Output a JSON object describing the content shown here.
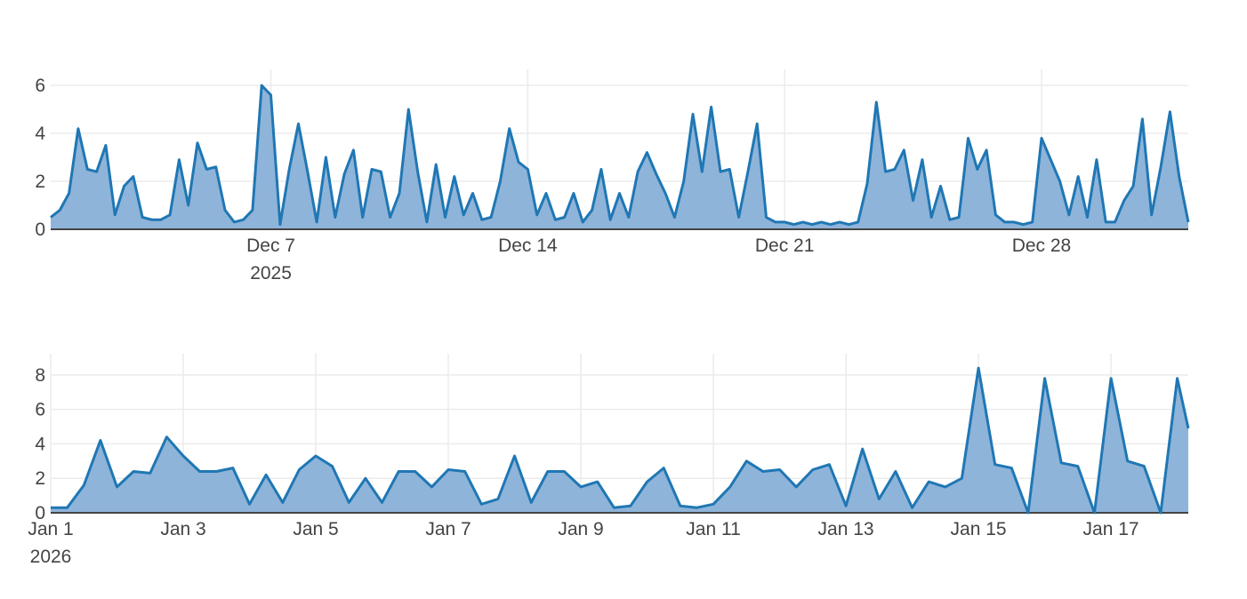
{
  "chart_data": [
    {
      "type": "area",
      "color": "#1f77b4",
      "fill": "#8fb4d9",
      "xlim": [
        "2025-12-01T00:00",
        "2026-01-01T00:00"
      ],
      "ylim": [
        0,
        6.67
      ],
      "yticks": [
        0,
        2,
        4,
        6
      ],
      "grid": true,
      "xticks": [
        {
          "value": "2025-12-07T00:00",
          "label": "Dec 7\n2025"
        },
        {
          "value": "2025-12-14T00:00",
          "label": "Dec 14"
        },
        {
          "value": "2025-12-21T00:00",
          "label": "Dec 21"
        },
        {
          "value": "2025-12-28T00:00",
          "label": "Dec 28"
        }
      ],
      "x": [
        "2025-12-01T00:00",
        "2025-12-01T06:00",
        "2025-12-01T12:00",
        "2025-12-01T18:00",
        "2025-12-02T00:00",
        "2025-12-02T06:00",
        "2025-12-02T12:00",
        "2025-12-02T18:00",
        "2025-12-03T00:00",
        "2025-12-03T06:00",
        "2025-12-03T12:00",
        "2025-12-03T18:00",
        "2025-12-04T00:00",
        "2025-12-04T06:00",
        "2025-12-04T12:00",
        "2025-12-04T18:00",
        "2025-12-05T00:00",
        "2025-12-05T06:00",
        "2025-12-05T12:00",
        "2025-12-05T18:00",
        "2025-12-06T00:00",
        "2025-12-06T06:00",
        "2025-12-06T12:00",
        "2025-12-06T18:00",
        "2025-12-07T00:00",
        "2025-12-07T06:00",
        "2025-12-07T12:00",
        "2025-12-07T18:00",
        "2025-12-08T00:00",
        "2025-12-08T06:00",
        "2025-12-08T12:00",
        "2025-12-08T18:00",
        "2025-12-09T00:00",
        "2025-12-09T06:00",
        "2025-12-09T12:00",
        "2025-12-09T18:00",
        "2025-12-10T00:00",
        "2025-12-10T06:00",
        "2025-12-10T12:00",
        "2025-12-10T18:00",
        "2025-12-11T00:00",
        "2025-12-11T06:00",
        "2025-12-11T12:00",
        "2025-12-11T18:00",
        "2025-12-12T00:00",
        "2025-12-12T06:00",
        "2025-12-12T12:00",
        "2025-12-12T18:00",
        "2025-12-13T00:00",
        "2025-12-13T06:00",
        "2025-12-13T12:00",
        "2025-12-13T18:00",
        "2025-12-14T00:00",
        "2025-12-14T06:00",
        "2025-12-14T12:00",
        "2025-12-14T18:00",
        "2025-12-15T00:00",
        "2025-12-15T06:00",
        "2025-12-15T12:00",
        "2025-12-15T18:00",
        "2025-12-16T00:00",
        "2025-12-16T06:00",
        "2025-12-16T12:00",
        "2025-12-16T18:00",
        "2025-12-17T00:00",
        "2025-12-17T06:00",
        "2025-12-17T12:00",
        "2025-12-17T18:00",
        "2025-12-18T00:00",
        "2025-12-18T06:00",
        "2025-12-18T12:00",
        "2025-12-18T18:00",
        "2025-12-19T00:00",
        "2025-12-19T06:00",
        "2025-12-19T12:00",
        "2025-12-19T18:00",
        "2025-12-20T00:00",
        "2025-12-20T06:00",
        "2025-12-20T12:00",
        "2025-12-20T18:00",
        "2025-12-21T00:00",
        "2025-12-21T06:00",
        "2025-12-21T12:00",
        "2025-12-21T18:00",
        "2025-12-22T00:00",
        "2025-12-22T06:00",
        "2025-12-22T12:00",
        "2025-12-22T18:00",
        "2025-12-23T00:00",
        "2025-12-23T06:00",
        "2025-12-23T12:00",
        "2025-12-23T18:00",
        "2025-12-24T00:00",
        "2025-12-24T06:00",
        "2025-12-24T12:00",
        "2025-12-24T18:00",
        "2025-12-25T00:00",
        "2025-12-25T06:00",
        "2025-12-25T12:00",
        "2025-12-25T18:00",
        "2025-12-26T00:00",
        "2025-12-26T06:00",
        "2025-12-26T12:00",
        "2025-12-26T18:00",
        "2025-12-27T00:00",
        "2025-12-27T06:00",
        "2025-12-27T12:00",
        "2025-12-27T18:00",
        "2025-12-28T00:00",
        "2025-12-28T06:00",
        "2025-12-28T12:00",
        "2025-12-28T18:00",
        "2025-12-29T00:00",
        "2025-12-29T06:00",
        "2025-12-29T12:00",
        "2025-12-29T18:00",
        "2025-12-30T00:00",
        "2025-12-30T06:00",
        "2025-12-30T12:00",
        "2025-12-30T18:00",
        "2025-12-31T00:00",
        "2025-12-31T06:00",
        "2025-12-31T12:00",
        "2025-12-31T18:00",
        "2026-01-01T00:00"
      ],
      "values": [
        0.5,
        0.8,
        1.5,
        4.2,
        2.5,
        2.4,
        3.5,
        0.6,
        1.8,
        2.2,
        0.5,
        0.4,
        0.4,
        0.6,
        2.9,
        1.0,
        3.6,
        2.5,
        2.6,
        0.8,
        0.3,
        0.4,
        0.8,
        6.0,
        5.6,
        0.2,
        2.5,
        4.4,
        2.4,
        0.3,
        3.0,
        0.5,
        2.3,
        3.3,
        0.5,
        2.5,
        2.4,
        0.5,
        1.5,
        5.0,
        2.4,
        0.3,
        2.7,
        0.5,
        2.2,
        0.6,
        1.5,
        0.4,
        0.5,
        2.0,
        4.2,
        2.8,
        2.5,
        0.6,
        1.5,
        0.4,
        0.5,
        1.5,
        0.3,
        0.8,
        2.5,
        0.4,
        1.5,
        0.5,
        2.4,
        3.2,
        2.3,
        1.5,
        0.5,
        2.0,
        4.8,
        2.4,
        5.1,
        2.4,
        2.5,
        0.5,
        2.4,
        4.4,
        0.5,
        0.3,
        0.3,
        0.2,
        0.3,
        0.2,
        0.3,
        0.2,
        0.3,
        0.2,
        0.3,
        1.9,
        5.3,
        2.4,
        2.5,
        3.3,
        1.2,
        2.9,
        0.5,
        1.8,
        0.4,
        0.5,
        3.8,
        2.5,
        3.3,
        0.6,
        0.3,
        0.3,
        0.2,
        0.3,
        3.8,
        2.9,
        2.0,
        0.6,
        2.2,
        0.5,
        2.9,
        0.3,
        0.3,
        1.2,
        1.8,
        4.6,
        0.6,
        2.6,
        4.9,
        2.2,
        0.3
      ]
    },
    {
      "type": "area",
      "color": "#1f77b4",
      "fill": "#8fb4d9",
      "xlim": [
        "2026-01-01T00:00",
        "2026-01-18T04:00"
      ],
      "ylim": [
        0,
        9.23
      ],
      "yticks": [
        0,
        2,
        4,
        6,
        8
      ],
      "grid": true,
      "xticks": [
        {
          "value": "2026-01-01T00:00",
          "label": "Jan 1\n2026"
        },
        {
          "value": "2026-01-03T00:00",
          "label": "Jan 3"
        },
        {
          "value": "2026-01-05T00:00",
          "label": "Jan 5"
        },
        {
          "value": "2026-01-07T00:00",
          "label": "Jan 7"
        },
        {
          "value": "2026-01-09T00:00",
          "label": "Jan 9"
        },
        {
          "value": "2026-01-11T00:00",
          "label": "Jan 11"
        },
        {
          "value": "2026-01-13T00:00",
          "label": "Jan 13"
        },
        {
          "value": "2026-01-15T00:00",
          "label": "Jan 15"
        },
        {
          "value": "2026-01-17T00:00",
          "label": "Jan 17"
        }
      ],
      "x": [
        "2026-01-01T00:00",
        "2026-01-01T06:00",
        "2026-01-01T12:00",
        "2026-01-01T18:00",
        "2026-01-02T00:00",
        "2026-01-02T06:00",
        "2026-01-02T12:00",
        "2026-01-02T18:00",
        "2026-01-03T00:00",
        "2026-01-03T06:00",
        "2026-01-03T12:00",
        "2026-01-03T18:00",
        "2026-01-04T00:00",
        "2026-01-04T06:00",
        "2026-01-04T12:00",
        "2026-01-04T18:00",
        "2026-01-05T00:00",
        "2026-01-05T06:00",
        "2026-01-05T12:00",
        "2026-01-05T18:00",
        "2026-01-06T00:00",
        "2026-01-06T06:00",
        "2026-01-06T12:00",
        "2026-01-06T18:00",
        "2026-01-07T00:00",
        "2026-01-07T06:00",
        "2026-01-07T12:00",
        "2026-01-07T18:00",
        "2026-01-08T00:00",
        "2026-01-08T06:00",
        "2026-01-08T12:00",
        "2026-01-08T18:00",
        "2026-01-09T00:00",
        "2026-01-09T06:00",
        "2026-01-09T12:00",
        "2026-01-09T18:00",
        "2026-01-10T00:00",
        "2026-01-10T06:00",
        "2026-01-10T12:00",
        "2026-01-10T18:00",
        "2026-01-11T00:00",
        "2026-01-11T06:00",
        "2026-01-11T12:00",
        "2026-01-11T18:00",
        "2026-01-12T00:00",
        "2026-01-12T06:00",
        "2026-01-12T12:00",
        "2026-01-12T18:00",
        "2026-01-13T00:00",
        "2026-01-13T06:00",
        "2026-01-13T12:00",
        "2026-01-13T18:00",
        "2026-01-14T00:00",
        "2026-01-14T06:00",
        "2026-01-14T12:00",
        "2026-01-14T18:00",
        "2026-01-15T00:00",
        "2026-01-15T06:00",
        "2026-01-15T12:00",
        "2026-01-15T18:00",
        "2026-01-16T00:00",
        "2026-01-16T06:00",
        "2026-01-16T12:00",
        "2026-01-16T18:00",
        "2026-01-17T00:00",
        "2026-01-17T06:00",
        "2026-01-17T12:00",
        "2026-01-17T18:00",
        "2026-01-18T00:00",
        "2026-01-18T04:00"
      ],
      "values": [
        0.3,
        0.3,
        1.6,
        4.2,
        1.5,
        2.4,
        2.3,
        4.4,
        3.3,
        2.4,
        2.4,
        2.6,
        0.5,
        2.2,
        0.6,
        2.5,
        3.3,
        2.7,
        0.6,
        2.0,
        0.6,
        2.4,
        2.4,
        1.5,
        2.5,
        2.4,
        0.5,
        0.8,
        3.3,
        0.6,
        2.4,
        2.4,
        1.5,
        1.8,
        0.3,
        0.4,
        1.8,
        2.6,
        0.4,
        0.3,
        0.5,
        1.5,
        3.0,
        2.4,
        2.5,
        1.5,
        2.5,
        2.8,
        0.4,
        3.7,
        0.8,
        2.4,
        0.3,
        1.8,
        1.5,
        2.0,
        8.4,
        2.8,
        2.6,
        0.0,
        7.8,
        2.9,
        2.7,
        0.0,
        7.8,
        3.0,
        2.7,
        0.0,
        7.8,
        4.9
      ]
    }
  ]
}
